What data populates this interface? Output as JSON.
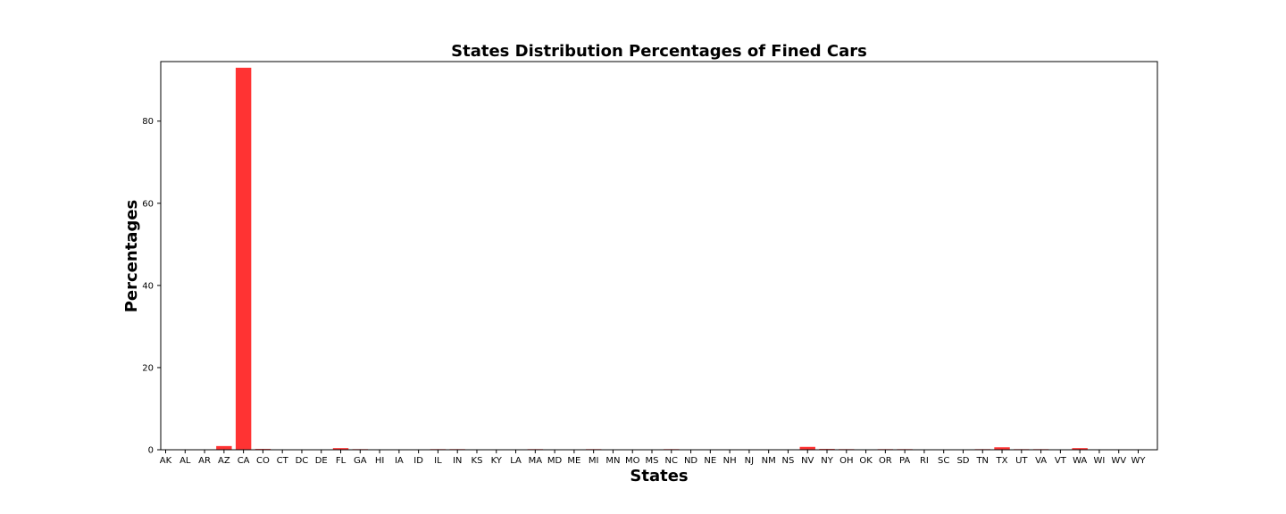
{
  "chart_data": {
    "type": "bar",
    "title": "States Distribution Percentages of Fined Cars",
    "xlabel": "States",
    "ylabel": "Percentages",
    "ylim": [
      0,
      94.5
    ],
    "yticks": [
      0,
      20,
      40,
      60,
      80
    ],
    "grid": false,
    "bar_color": "#ff3333",
    "categories": [
      "AK",
      "AL",
      "AR",
      "AZ",
      "CA",
      "CO",
      "CT",
      "DC",
      "DE",
      "FL",
      "GA",
      "HI",
      "IA",
      "ID",
      "IL",
      "IN",
      "KS",
      "KY",
      "LA",
      "MA",
      "MD",
      "ME",
      "MI",
      "MN",
      "MO",
      "MS",
      "NC",
      "ND",
      "NE",
      "NH",
      "NJ",
      "NM",
      "NS",
      "NV",
      "NY",
      "OH",
      "OK",
      "OR",
      "PA",
      "RI",
      "SC",
      "SD",
      "TN",
      "TX",
      "UT",
      "VA",
      "VT",
      "WA",
      "WI",
      "WV",
      "WY"
    ],
    "values": [
      0.02,
      0.02,
      0.02,
      0.9,
      93.0,
      0.2,
      0.02,
      0.02,
      0.02,
      0.4,
      0.15,
      0.02,
      0.02,
      0.02,
      0.15,
      0.15,
      0.02,
      0.02,
      0.02,
      0.15,
      0.02,
      0.02,
      0.15,
      0.02,
      0.02,
      0.02,
      0.15,
      0.02,
      0.02,
      0.02,
      0.02,
      0.02,
      0.02,
      0.7,
      0.2,
      0.15,
      0.02,
      0.15,
      0.15,
      0.02,
      0.02,
      0.02,
      0.15,
      0.6,
      0.15,
      0.15,
      0.02,
      0.4,
      0.02,
      0.02,
      0.02
    ]
  }
}
